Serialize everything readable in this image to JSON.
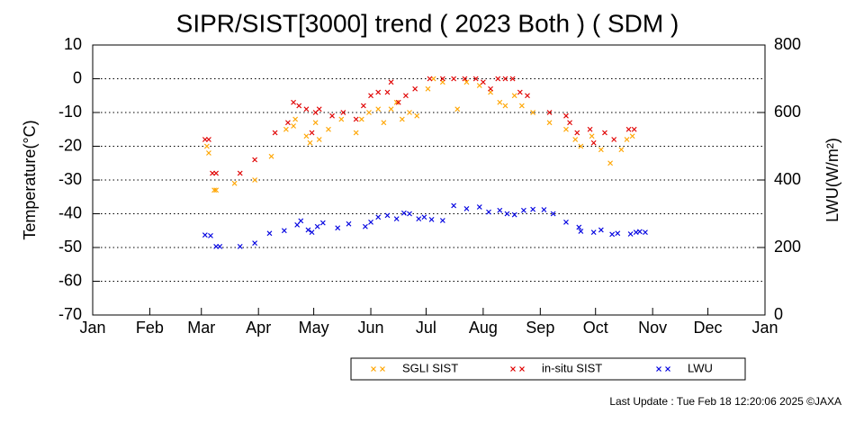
{
  "chart_data": {
    "type": "scatter",
    "title": "SIPR/SIST[3000] trend ( 2023 Both ) ( SDM )",
    "ylabel": "Temperature(°C)",
    "y2label": "LWU(W/m²)",
    "footnote": "Last Update : Tue Feb 18 12:20:06 2025  ©JAXA",
    "xlim": [
      0,
      365
    ],
    "xticks": [
      {
        "value": 0,
        "label": "Jan"
      },
      {
        "value": 31,
        "label": "Feb"
      },
      {
        "value": 59,
        "label": "Mar"
      },
      {
        "value": 90,
        "label": "Apr"
      },
      {
        "value": 120,
        "label": "May"
      },
      {
        "value": 151,
        "label": "Jun"
      },
      {
        "value": 181,
        "label": "Jul"
      },
      {
        "value": 212,
        "label": "Aug"
      },
      {
        "value": 243,
        "label": "Sep"
      },
      {
        "value": 273,
        "label": "Oct"
      },
      {
        "value": 304,
        "label": "Nov"
      },
      {
        "value": 334,
        "label": "Dec"
      },
      {
        "value": 365,
        "label": "Jan"
      }
    ],
    "ylim": [
      -70,
      10
    ],
    "yticks": [
      10,
      0,
      -10,
      -20,
      -30,
      -40,
      -50,
      -60,
      -70
    ],
    "y2lim": [
      0,
      800
    ],
    "y2ticks": [
      800,
      600,
      400,
      200,
      0
    ],
    "grid": true,
    "series": [
      {
        "name": "SGLI SIST",
        "color": "#ffa500",
        "x": [
          62,
          63,
          66,
          67,
          77,
          88,
          97,
          105,
          109,
          110,
          116,
          118,
          121,
          123,
          128,
          135,
          143,
          146,
          150,
          155,
          158,
          162,
          165,
          168,
          172,
          176,
          182,
          185,
          190,
          198,
          203,
          210,
          216,
          221,
          224,
          229,
          233,
          239,
          248,
          257,
          262,
          265,
          271,
          276,
          281,
          287,
          290,
          293
        ],
        "values": [
          -20,
          -22,
          -33,
          -33,
          -31,
          -30,
          -23,
          -15,
          -14,
          -12,
          -17,
          -19,
          -13,
          -18,
          -15,
          -12,
          -16,
          -12,
          -10,
          -9,
          -13,
          -9,
          -7,
          -12,
          -10,
          -11,
          -3,
          0,
          -1,
          -9,
          -1,
          -2,
          -4,
          -7,
          -8,
          -5,
          -8,
          -10,
          -13,
          -15,
          -18,
          -20,
          -17,
          -21,
          -25,
          -21,
          -18,
          -17
        ]
      },
      {
        "name": "in-situ SIST",
        "color": "#e00000",
        "x": [
          61,
          63,
          65,
          67,
          80,
          88,
          99,
          106,
          109,
          112,
          116,
          119,
          121,
          123,
          130,
          136,
          143,
          147,
          151,
          155,
          160,
          162,
          166,
          170,
          175,
          183,
          190,
          196,
          202,
          208,
          212,
          216,
          220,
          224,
          228,
          232,
          236,
          248,
          257,
          259,
          263,
          270,
          272,
          278,
          283,
          291,
          294
        ],
        "values": [
          -18,
          -18,
          -28,
          -28,
          -28,
          -24,
          -16,
          -13,
          -7,
          -8,
          -9,
          -16,
          -10,
          -9,
          -11,
          -10,
          -12,
          -8,
          -5,
          -4,
          -4,
          -1,
          -7,
          -5,
          -3,
          0,
          0,
          0,
          0,
          0,
          -1,
          -3,
          0,
          0,
          0,
          -4,
          -5,
          -10,
          -11,
          -13,
          -16,
          -15,
          -19,
          -16,
          -18,
          -15,
          -15
        ]
      },
      {
        "name": "LWU",
        "color": "#0000e0",
        "axis": "y2",
        "x": [
          61,
          64,
          67,
          69,
          80,
          88,
          96,
          104,
          111,
          113,
          117,
          119,
          122,
          125,
          133,
          139,
          148,
          151,
          155,
          160,
          165,
          169,
          172,
          177,
          180,
          184,
          190,
          196,
          203,
          210,
          215,
          221,
          225,
          229,
          234,
          239,
          245,
          250,
          257,
          264,
          265,
          272,
          276,
          282,
          285,
          292,
          295,
          297,
          300
        ],
        "values": [
          237,
          235,
          203,
          203,
          203,
          213,
          242,
          250,
          267,
          279,
          252,
          245,
          262,
          273,
          258,
          270,
          262,
          275,
          290,
          295,
          285,
          302,
          300,
          285,
          290,
          283,
          280,
          324,
          315,
          320,
          305,
          310,
          300,
          297,
          310,
          313,
          312,
          300,
          275,
          260,
          248,
          245,
          252,
          239,
          242,
          240,
          245,
          247,
          245
        ]
      }
    ]
  }
}
